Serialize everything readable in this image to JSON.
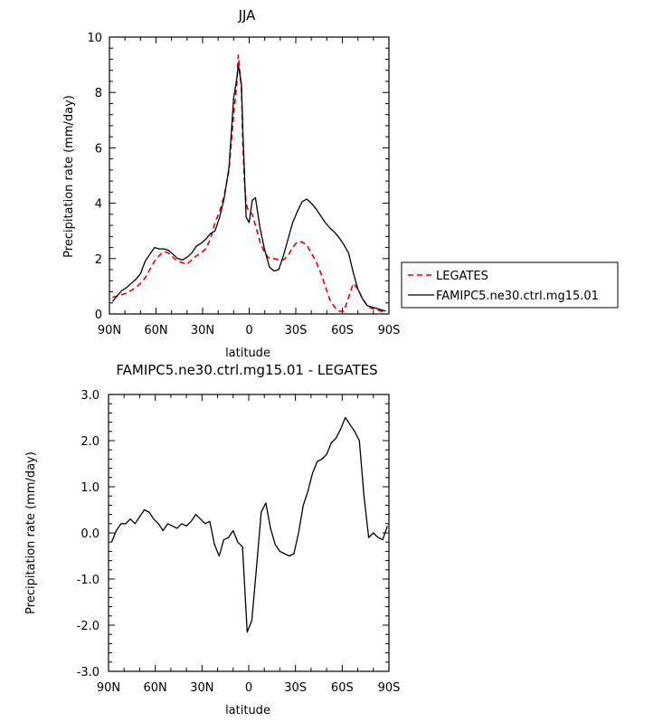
{
  "chart_data": [
    {
      "type": "line",
      "title": "JJA",
      "xlabel": "latitude",
      "ylabel": "Precipitation rate (mm/day)",
      "xlim": [
        90,
        -90
      ],
      "ylim": [
        0,
        10
      ],
      "x_ticks": [
        90,
        60,
        30,
        0,
        -30,
        -60,
        -90
      ],
      "x_tick_labels": [
        "90N",
        "60N",
        "30N",
        "0",
        "30S",
        "60S",
        "90S"
      ],
      "y_ticks": [
        0,
        2,
        4,
        6,
        8,
        10
      ],
      "y_tick_labels": [
        "0",
        "2",
        "4",
        "6",
        "8",
        "10"
      ],
      "legend_position": "right-bottom-outside",
      "series": [
        {
          "name": "LEGATES",
          "color": "#e00000",
          "dashed": true,
          "x": [
            88,
            85,
            82,
            79,
            76,
            73,
            70,
            67,
            64,
            61,
            58,
            55,
            52,
            49,
            46,
            43,
            40,
            37,
            34,
            31,
            28,
            25,
            22,
            19,
            16,
            13,
            10,
            8,
            7,
            5,
            4,
            3,
            2,
            1,
            0,
            -2,
            -4,
            -7,
            -10,
            -13,
            -16,
            -19,
            -22,
            -25,
            -28,
            -31,
            -34,
            -37,
            -40,
            -43,
            -46,
            -49,
            -52,
            -55,
            -58,
            -61,
            -64,
            -67,
            -70,
            -73,
            -76,
            -79,
            -82,
            -85,
            -88
          ],
          "y": [
            0.6,
            0.65,
            0.7,
            0.75,
            0.85,
            0.95,
            1.1,
            1.3,
            1.6,
            1.9,
            2.1,
            2.25,
            2.2,
            2.05,
            1.9,
            1.85,
            1.8,
            1.95,
            2.1,
            2.2,
            2.35,
            2.7,
            3.3,
            3.7,
            4.3,
            5.2,
            7.2,
            8.3,
            9.35,
            8.2,
            6.0,
            4.7,
            4.0,
            3.8,
            3.7,
            3.6,
            3.2,
            2.6,
            2.2,
            2.0,
            2.0,
            1.95,
            1.95,
            2.1,
            2.4,
            2.6,
            2.6,
            2.5,
            2.2,
            1.9,
            1.5,
            1.0,
            0.5,
            0.25,
            0.1,
            0.1,
            0.6,
            1.1,
            0.9,
            0.55,
            0.3,
            0.2,
            0.15,
            0.1,
            0.05
          ]
        },
        {
          "name": "FAMIPC5.ne30.ctrl.mg15.01",
          "color": "#000000",
          "dashed": false,
          "x": [
            88,
            85,
            82,
            79,
            76,
            73,
            70,
            67,
            64,
            61,
            58,
            55,
            52,
            49,
            46,
            43,
            40,
            37,
            34,
            31,
            28,
            25,
            22,
            19,
            16,
            13,
            10,
            8,
            7,
            5,
            4,
            3,
            2,
            1,
            0,
            -2,
            -4,
            -7,
            -10,
            -13,
            -16,
            -19,
            -22,
            -25,
            -28,
            -31,
            -34,
            -37,
            -40,
            -43,
            -46,
            -49,
            -52,
            -55,
            -58,
            -61,
            -64,
            -67,
            -70,
            -73,
            -76,
            -79,
            -82,
            -85,
            -88
          ],
          "y": [
            0.45,
            0.65,
            0.85,
            0.95,
            1.1,
            1.25,
            1.45,
            1.9,
            2.15,
            2.4,
            2.35,
            2.35,
            2.3,
            2.15,
            2.0,
            1.95,
            2.05,
            2.2,
            2.45,
            2.55,
            2.7,
            2.9,
            3.0,
            3.5,
            4.2,
            5.3,
            7.8,
            8.5,
            9.0,
            8.3,
            6.5,
            5.0,
            3.5,
            3.4,
            3.3,
            4.1,
            4.2,
            3.1,
            2.3,
            1.7,
            1.55,
            1.6,
            2.1,
            2.7,
            3.3,
            3.7,
            4.05,
            4.15,
            4.0,
            3.8,
            3.55,
            3.3,
            3.1,
            2.95,
            2.75,
            2.5,
            2.2,
            1.5,
            0.9,
            0.55,
            0.3,
            0.25,
            0.2,
            0.15,
            0.1
          ]
        }
      ]
    },
    {
      "type": "line",
      "title": "FAMIPC5.ne30.ctrl.mg15.01 - LEGATES",
      "xlabel": "latitude",
      "ylabel": "Precipitation rate (mm/day)",
      "xlim": [
        90,
        -90
      ],
      "ylim": [
        -3,
        3
      ],
      "x_ticks": [
        90,
        60,
        30,
        0,
        -30,
        -60,
        -90
      ],
      "x_tick_labels": [
        "90N",
        "60N",
        "30N",
        "0",
        "30S",
        "60S",
        "90S"
      ],
      "y_ticks": [
        -3,
        -2,
        -1,
        0,
        1,
        2,
        3
      ],
      "y_tick_labels": [
        "-3.0",
        "-2.0",
        "-1.0",
        "0.0",
        "1.0",
        "2.0",
        "3.0"
      ],
      "series": [
        {
          "color": "#000000",
          "dashed": false,
          "x": [
            88,
            85,
            82,
            79,
            76,
            73,
            70,
            67,
            64,
            61,
            58,
            55,
            52,
            49,
            46,
            43,
            40,
            37,
            34,
            31,
            28,
            25,
            22,
            19,
            16,
            13,
            10,
            7,
            4,
            1,
            -2,
            -5,
            -8,
            -11,
            -14,
            -17,
            -20,
            -23,
            -26,
            -29,
            -32,
            -35,
            -38,
            -41,
            -44,
            -47,
            -50,
            -53,
            -56,
            -59,
            -62,
            -65,
            -68,
            -71,
            -74,
            -77,
            -80,
            -83,
            -86,
            -89
          ],
          "y": [
            -0.2,
            0.05,
            0.2,
            0.2,
            0.3,
            0.2,
            0.35,
            0.5,
            0.45,
            0.3,
            0.2,
            0.05,
            0.2,
            0.15,
            0.1,
            0.2,
            0.15,
            0.25,
            0.4,
            0.3,
            0.2,
            0.25,
            -0.25,
            -0.5,
            -0.15,
            -0.1,
            0.05,
            -0.2,
            -0.3,
            -2.15,
            -1.9,
            -0.75,
            0.45,
            0.65,
            0.1,
            -0.25,
            -0.4,
            -0.45,
            -0.5,
            -0.45,
            0.0,
            0.6,
            0.9,
            1.3,
            1.55,
            1.6,
            1.7,
            1.95,
            2.05,
            2.25,
            2.5,
            2.35,
            2.2,
            2.0,
            0.8,
            -0.1,
            0.0,
            -0.1,
            -0.15,
            0.15
          ]
        }
      ]
    }
  ]
}
